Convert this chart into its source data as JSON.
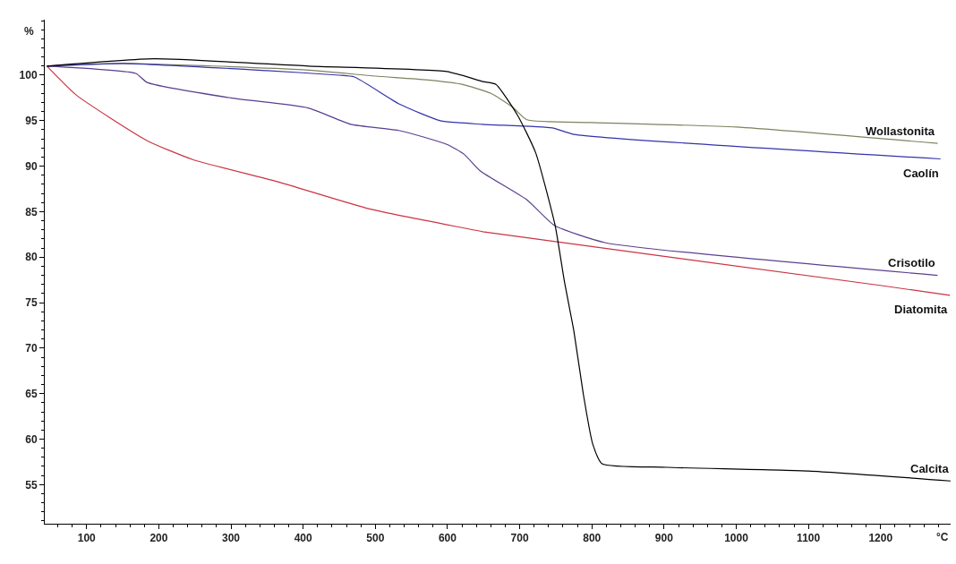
{
  "chart_data": {
    "type": "line",
    "xlabel": "°C",
    "ylabel": "%",
    "xlim": [
      42,
      1297
    ],
    "ylim": [
      50.7,
      106.1
    ],
    "xticks": [
      100,
      200,
      300,
      400,
      500,
      600,
      700,
      800,
      900,
      1000,
      1100,
      1200
    ],
    "yticks": [
      55,
      60,
      65,
      70,
      75,
      80,
      85,
      90,
      95,
      100
    ],
    "legend": false,
    "marker": "none",
    "line_style": "solid",
    "series": [
      {
        "name": "Wollastonita",
        "color": "#808060",
        "x": [
          45,
          150,
          400,
          500,
          570,
          620,
          660,
          690,
          710,
          800,
          1000,
          1279
        ],
        "values": [
          101,
          101.3,
          100.6,
          99.9,
          99.5,
          99.0,
          98.0,
          96.5,
          95.1,
          94.8,
          94.3,
          92.5
        ]
      },
      {
        "name": "Caolín",
        "color": "#3333aa",
        "x": [
          45,
          150,
          350,
          450,
          471,
          534,
          590,
          648,
          745,
          775,
          1283
        ],
        "values": [
          101,
          101.3,
          100.5,
          100,
          99.8,
          96.8,
          95.0,
          94.6,
          94.2,
          93.5,
          90.8
        ]
      },
      {
        "name": "Crisotilo",
        "color": "#5a3f8f",
        "x": [
          45,
          168,
          184,
          300,
          407,
          466,
          534,
          599,
          623,
          645,
          710,
          748,
          818,
          1279
        ],
        "values": [
          101,
          100.2,
          99.2,
          97.5,
          96.4,
          94.6,
          93.9,
          92.4,
          91.3,
          89.5,
          86.3,
          83.5,
          81.6,
          78.0
        ]
      },
      {
        "name": "Diatomita",
        "color": "#cc3344",
        "x": [
          45,
          86,
          184,
          248,
          364,
          492,
          623,
          649,
          1199,
          1296
        ],
        "values": [
          101,
          97.8,
          92.8,
          90.7,
          88.3,
          85.3,
          83.2,
          82.8,
          76.9,
          75.8
        ]
      },
      {
        "name": "Calcita",
        "color": "#000000",
        "x": [
          45,
          193,
          407,
          599,
          649,
          667,
          697,
          722,
          749,
          762,
          775,
          788,
          801,
          814,
          904,
          1100,
          1297
        ],
        "values": [
          101,
          101.8,
          101.0,
          100.4,
          99.3,
          99.0,
          95.6,
          91.5,
          83.5,
          77.3,
          71.9,
          65.0,
          59.5,
          57.3,
          56.9,
          56.5,
          55.4
        ]
      }
    ]
  }
}
